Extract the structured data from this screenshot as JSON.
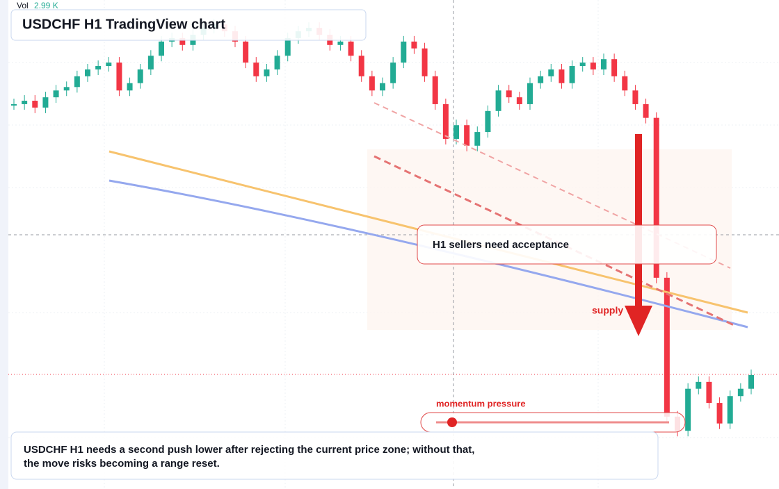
{
  "header": {
    "vol_label": "Vol",
    "vol_value": "2.99 K",
    "title": "USDCHF H1 TradingView chart"
  },
  "annotations": {
    "zone_note": "H1 sellers need acceptance",
    "supply": "supply",
    "momentum": "momentum pressure",
    "caption_line1": "USDCHF H1 needs a second push lower after rejecting the current price zone; without that,",
    "caption_line2": "the move risks becoming a range reset."
  },
  "chart_data": {
    "type": "candlestick",
    "up_color": "#22ab94",
    "down_color": "#f23645",
    "ylim": [
      0,
      100
    ],
    "close": [
      78.7,
      79.4,
      78.0,
      80.1,
      81.5,
      82.2,
      84.4,
      85.8,
      86.5,
      87.2,
      81.5,
      83.0,
      85.8,
      88.6,
      91.5,
      92.2,
      90.8,
      92.9,
      94.3,
      95.0,
      93.6,
      91.5,
      87.2,
      84.4,
      85.8,
      88.6,
      92.2,
      93.6,
      94.3,
      92.9,
      90.8,
      91.5,
      88.6,
      84.4,
      81.5,
      83.0,
      87.2,
      91.5,
      90.1,
      84.4,
      78.7,
      71.6,
      74.4,
      70.2,
      73.0,
      77.3,
      81.5,
      80.1,
      78.7,
      83.0,
      84.4,
      85.8,
      83.0,
      86.5,
      87.2,
      85.8,
      87.9,
      84.4,
      81.5,
      78.7,
      75.9,
      43.2,
      14.8,
      11.9,
      20.5,
      21.9,
      17.6,
      13.4,
      19.0,
      20.5,
      23.3
    ]
  }
}
